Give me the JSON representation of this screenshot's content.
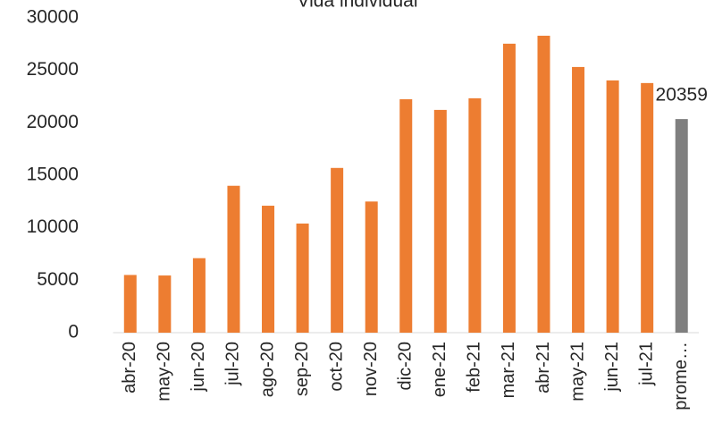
{
  "chart_data": {
    "type": "bar",
    "title": "Vida individual",
    "categories": [
      "abr-20",
      "may-20",
      "jun-20",
      "jul-20",
      "ago-20",
      "sep-20",
      "oct-20",
      "nov-20",
      "dic-20",
      "ene-21",
      "feb-21",
      "mar-21",
      "abr-21",
      "may-21",
      "jun-21",
      "jul-21",
      "prome…"
    ],
    "values": [
      5500,
      5450,
      7100,
      14000,
      12100,
      10400,
      15700,
      12500,
      22250,
      21230,
      22340,
      27540,
      28300,
      25320,
      24040,
      23790,
      20359
    ],
    "colors": [
      "#ed7d31",
      "#ed7d31",
      "#ed7d31",
      "#ed7d31",
      "#ed7d31",
      "#ed7d31",
      "#ed7d31",
      "#ed7d31",
      "#ed7d31",
      "#ed7d31",
      "#ed7d31",
      "#ed7d31",
      "#ed7d31",
      "#ed7d31",
      "#ed7d31",
      "#ed7d31",
      "#7f7f7f"
    ],
    "labeled_bars": [
      16
    ],
    "ylim": [
      0,
      30000
    ],
    "yticks": [
      0,
      5000,
      10000,
      15000,
      20000,
      25000,
      30000
    ],
    "grid": false
  }
}
